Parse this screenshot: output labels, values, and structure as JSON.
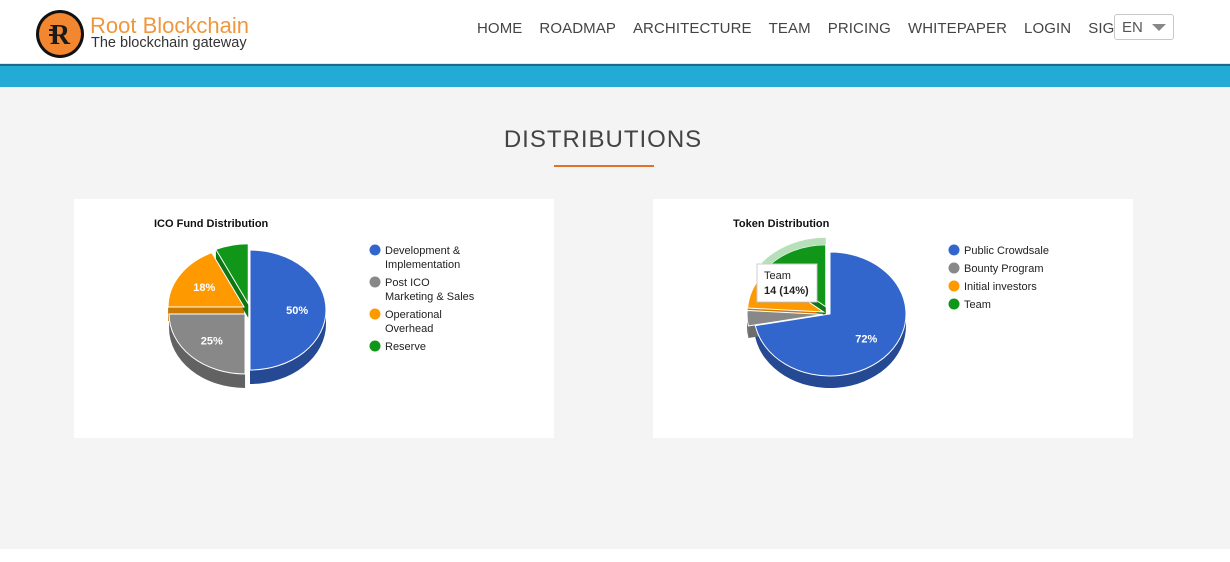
{
  "header": {
    "brand_name": "Root Blockchain",
    "brand_tagline": "The blockchain gateway",
    "logo_icon": "root-r-logo-icon",
    "nav": [
      "HOME",
      "ROADMAP",
      "ARCHITECTURE",
      "TEAM",
      "PRICING",
      "WHITEPAPER",
      "LOGIN",
      "SIGNUP"
    ],
    "language": "EN"
  },
  "colors": {
    "brand": "#f0973d",
    "band": "#23abd5",
    "accent_underline": "#e0702a"
  },
  "section": {
    "title": "DISTRIBUTIONS"
  },
  "chart_data": [
    {
      "type": "pie",
      "title": "ICO Fund Distribution",
      "style": "3d",
      "legend_position": "right",
      "slices": [
        {
          "label": "Development & Implementation",
          "legend_lines": [
            "Development &",
            "Implementation"
          ],
          "value": 50,
          "display": "50%",
          "color": "#3366cc"
        },
        {
          "label": "Post ICO Marketing & Sales",
          "legend_lines": [
            "Post ICO",
            "Marketing & Sales"
          ],
          "value": 25,
          "display": "25%",
          "color": "#888888"
        },
        {
          "label": "Operational Overhead",
          "legend_lines": [
            "Operational",
            "Overhead"
          ],
          "value": 18,
          "display": "18%",
          "color": "#ff9900"
        },
        {
          "label": "Reserve",
          "legend_lines": [
            "Reserve"
          ],
          "value": 7,
          "display": "",
          "color": "#109618"
        }
      ]
    },
    {
      "type": "pie",
      "title": "Token Distribution",
      "style": "3d",
      "legend_position": "right",
      "slices": [
        {
          "label": "Public Crowdsale",
          "legend_lines": [
            "Public Crowdsale"
          ],
          "value": 72,
          "display": "72%",
          "color": "#3366cc"
        },
        {
          "label": "Bounty Program",
          "legend_lines": [
            "Bounty Program"
          ],
          "value": 4,
          "display": "",
          "color": "#888888"
        },
        {
          "label": "Initial investors",
          "legend_lines": [
            "Initial investors"
          ],
          "value": 10,
          "display": "",
          "color": "#ff9900"
        },
        {
          "label": "Team",
          "legend_lines": [
            "Team"
          ],
          "value": 14,
          "display": "",
          "color": "#109618"
        }
      ],
      "tooltip": {
        "slice": "Team",
        "line1": "Team",
        "line2": "14 (14%)"
      }
    }
  ]
}
